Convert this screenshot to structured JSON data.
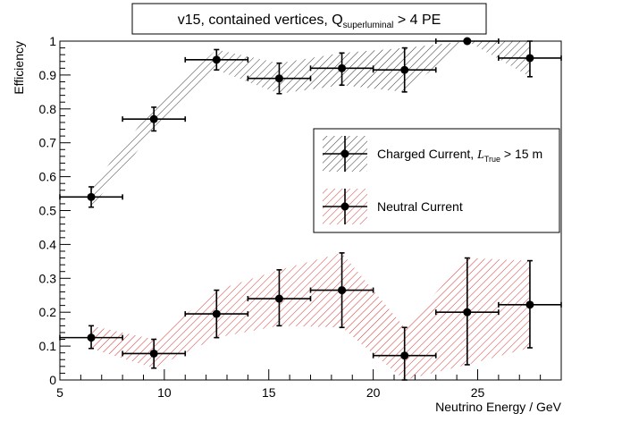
{
  "chart_data": {
    "type": "scatter",
    "title": "v15, contained vertices, Q",
    "title_subscript": "superluminal",
    "title_suffix": " > 4 PE",
    "xlabel": "Neutrino Energy / GeV",
    "ylabel": "Efficiency",
    "xlim": [
      5,
      29
    ],
    "ylim": [
      0,
      1
    ],
    "x_ticks": [
      5,
      10,
      15,
      20,
      25
    ],
    "y_ticks": [
      0,
      0.1,
      0.2,
      0.3,
      0.4,
      0.5,
      0.6,
      0.7,
      0.8,
      0.9,
      1
    ],
    "y_tick_labels": [
      "0",
      "0.1",
      "0.2",
      "0.3",
      "0.4",
      "0.5",
      "0.6",
      "0.7",
      "0.8",
      "0.9",
      "1"
    ],
    "legend_placement": "right",
    "series": [
      {
        "name_prefix": "Charged Current, ",
        "name_italic": "L",
        "name_subscript": "True",
        "name_suffix": " > 15 m",
        "color": "#000000",
        "band_color": "#000000",
        "x": [
          6.5,
          9.5,
          12.5,
          15.5,
          18.5,
          21.5,
          24.5,
          27.5
        ],
        "xerr": [
          1.5,
          1.5,
          1.5,
          1.5,
          1.5,
          1.5,
          1.5,
          1.5
        ],
        "y": [
          0.54,
          0.77,
          0.945,
          0.89,
          0.92,
          0.915,
          1.0,
          0.95
        ],
        "y_low": [
          0.51,
          0.735,
          0.915,
          0.845,
          0.87,
          0.85,
          1.0,
          0.895
        ],
        "y_high": [
          0.57,
          0.805,
          0.975,
          0.935,
          0.965,
          0.98,
          1.0,
          1.0
        ]
      },
      {
        "name": "Neutral Current",
        "color": "#000000",
        "band_color": "#cc0000",
        "x": [
          6.5,
          9.5,
          12.5,
          15.5,
          18.5,
          21.5,
          24.5,
          27.5
        ],
        "xerr": [
          1.5,
          1.5,
          1.5,
          1.5,
          1.5,
          1.5,
          1.5,
          1.5
        ],
        "y": [
          0.125,
          0.078,
          0.195,
          0.24,
          0.265,
          0.072,
          0.2,
          0.222
        ],
        "y_low": [
          0.093,
          0.035,
          0.125,
          0.16,
          0.155,
          0.0,
          0.045,
          0.095
        ],
        "y_high": [
          0.16,
          0.12,
          0.265,
          0.325,
          0.375,
          0.155,
          0.36,
          0.352
        ]
      }
    ]
  }
}
